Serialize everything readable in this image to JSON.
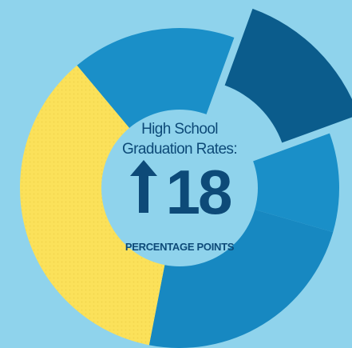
{
  "headline": {
    "lines": [
      "High School",
      "Graduation Rates:"
    ],
    "value": "18",
    "unit": "PERCENTAGE POINTS"
  }
}
